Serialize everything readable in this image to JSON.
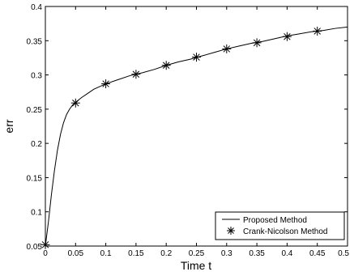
{
  "chart_data": {
    "type": "line",
    "xlabel": "Time t",
    "ylabel": "err",
    "xlim": [
      0,
      0.5
    ],
    "ylim": [
      0.05,
      0.4
    ],
    "x_ticks": [
      0,
      0.05,
      0.1,
      0.15,
      0.2,
      0.25,
      0.3,
      0.35,
      0.4,
      0.45,
      0.5
    ],
    "x_tick_labels": [
      "0",
      "0.05",
      "0.1",
      "0.15",
      "0.2",
      "0.25",
      "0.3",
      "0.35",
      "0.4",
      "0.45",
      "0.5"
    ],
    "y_ticks": [
      0.05,
      0.1,
      0.15,
      0.2,
      0.25,
      0.3,
      0.35,
      0.4
    ],
    "y_tick_labels": [
      "0.05",
      "0.1",
      "0.15",
      "0.2",
      "0.25",
      "0.3",
      "0.35",
      "0.4"
    ],
    "grid": false,
    "legend_position": "bottom-right",
    "series": [
      {
        "name": "Proposed Method",
        "style": "solid-line",
        "color": "#000000",
        "x": [
          0,
          0.005,
          0.01,
          0.015,
          0.02,
          0.025,
          0.03,
          0.035,
          0.04,
          0.045,
          0.05,
          0.06,
          0.07,
          0.08,
          0.09,
          0.1,
          0.12,
          0.14,
          0.16,
          0.18,
          0.2,
          0.22,
          0.24,
          0.26,
          0.28,
          0.3,
          0.32,
          0.34,
          0.36,
          0.38,
          0.4,
          0.42,
          0.44,
          0.46,
          0.48,
          0.5
        ],
        "y": [
          0.05,
          0.085,
          0.125,
          0.16,
          0.19,
          0.213,
          0.23,
          0.242,
          0.25,
          0.256,
          0.26,
          0.267,
          0.273,
          0.279,
          0.283,
          0.287,
          0.293,
          0.299,
          0.303,
          0.308,
          0.314,
          0.319,
          0.323,
          0.328,
          0.333,
          0.338,
          0.342,
          0.346,
          0.349,
          0.353,
          0.357,
          0.36,
          0.363,
          0.365,
          0.368,
          0.37
        ]
      },
      {
        "name": "Crank-Nicolson Method",
        "style": "asterisk-markers",
        "color": "#000000",
        "x": [
          0,
          0.05,
          0.1,
          0.15,
          0.2,
          0.25,
          0.3,
          0.35,
          0.4,
          0.45
        ],
        "y": [
          0.052,
          0.259,
          0.287,
          0.301,
          0.314,
          0.326,
          0.338,
          0.347,
          0.356,
          0.364
        ]
      }
    ]
  }
}
